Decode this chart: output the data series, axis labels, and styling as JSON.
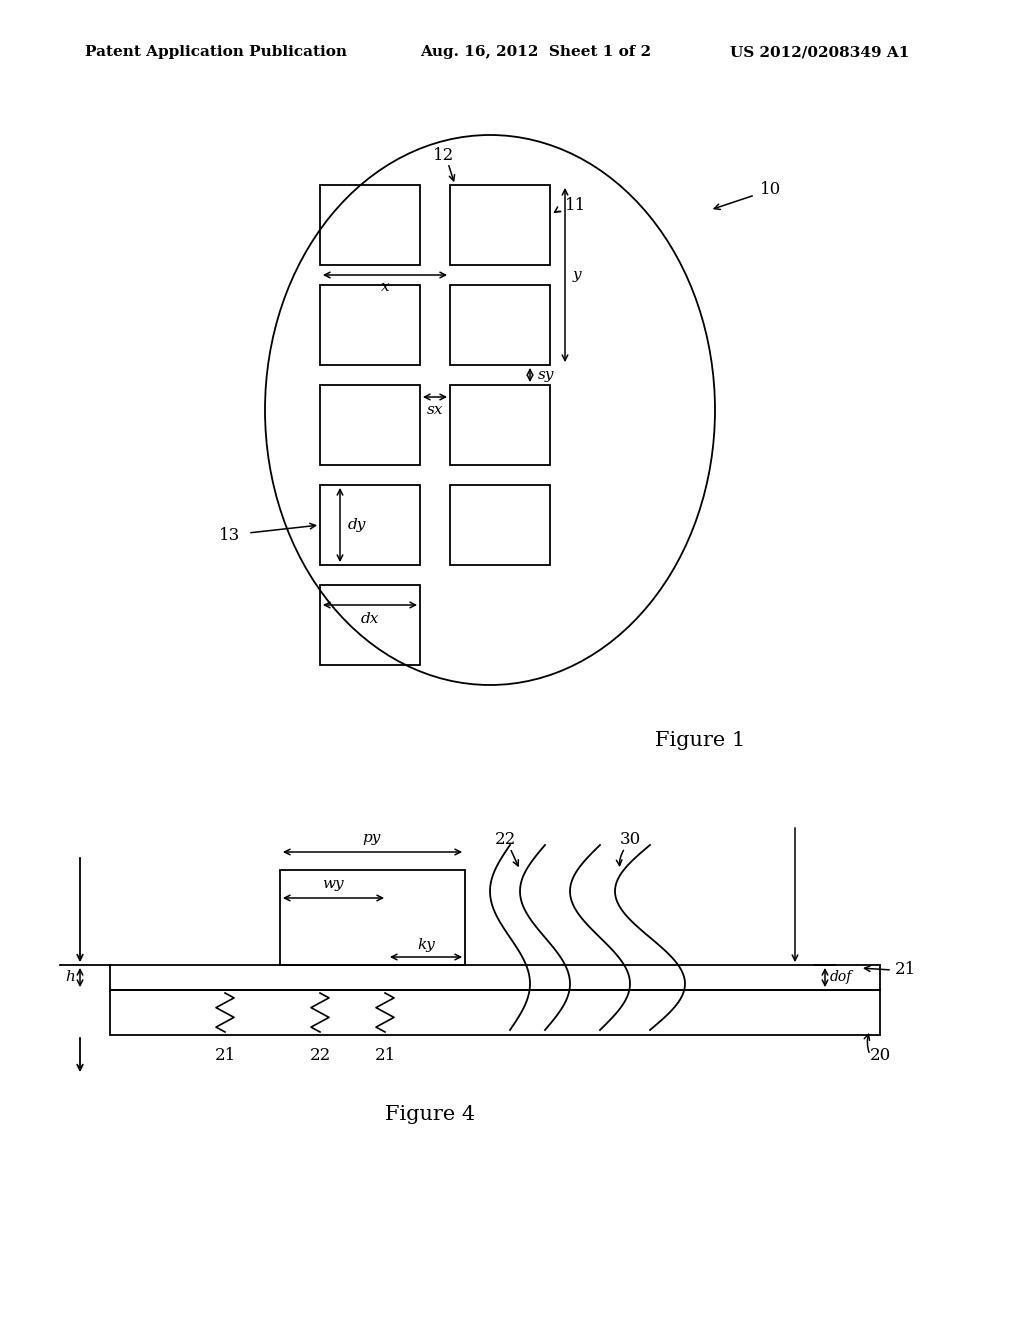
{
  "bg_color": "#ffffff",
  "header_text": "Patent Application Publication",
  "header_date": "Aug. 16, 2012  Sheet 1 of 2",
  "header_patent": "US 2012/0208349 A1",
  "fig1_label": "Figure 1",
  "fig4_label": "Figure 4",
  "label_10": "10",
  "label_11": "11",
  "label_12": "12",
  "label_13": "13",
  "label_x": "x",
  "label_y": "y",
  "label_sx": "sx",
  "label_sy": "sy",
  "label_dy": "dy",
  "label_dx": "dx",
  "label_py": "py",
  "label_wy": "wy",
  "label_ky": "ky",
  "label_h": "h",
  "label_dof": "dof",
  "label_20": "20",
  "label_21a": "21",
  "label_21b": "21",
  "label_21c": "21",
  "label_22a": "22",
  "label_22b": "22",
  "label_30": "30"
}
